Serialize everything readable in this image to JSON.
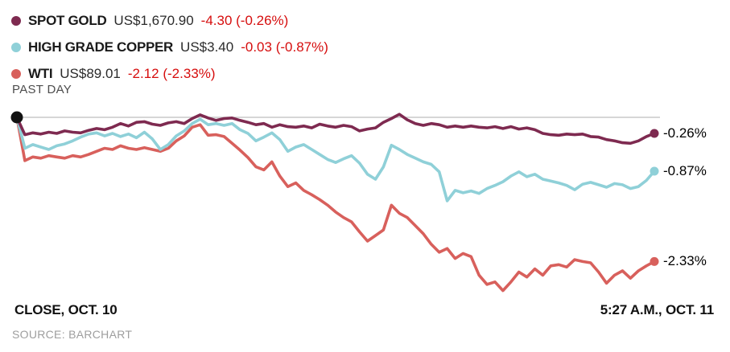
{
  "legend": {
    "items": [
      {
        "name": "SPOT GOLD",
        "price": "US$1,670.90",
        "change": "-4.30 (-0.26%)"
      },
      {
        "name": "HIGH GRADE COPPER",
        "price": "US$3.40",
        "change": "-0.03 (-0.87%)"
      },
      {
        "name": "WTI",
        "price": "US$89.01",
        "change": "-2.12 (-2.33%)"
      }
    ],
    "period_label": "PAST DAY"
  },
  "footer": {
    "left_label": "CLOSE, OCT. 10",
    "right_label": "5:27 A.M., OCT. 11",
    "source_label": "SOURCE: BARCHART"
  },
  "colors": {
    "gold_line": "#7e2a50",
    "copper_line": "#8fd0d8",
    "wti_line": "#d8605c",
    "negative_text": "#d60d0d",
    "zero_line": "#c9c9c9",
    "start_marker": "#121212"
  },
  "chart_data": {
    "type": "line",
    "unit": "percent_change_from_close",
    "title": "",
    "xlabel_start": "CLOSE, OCT. 10",
    "xlabel_end": "5:27 A.M., OCT. 11",
    "baseline_value": 0,
    "ylim": [
      -2.9,
      0.15
    ],
    "grid": false,
    "legend_position": "top-left",
    "zero_line_color": "#c9c9c9",
    "start_marker_color": "#121212",
    "series": [
      {
        "name": "SPOT GOLD",
        "color": "#7e2a50",
        "last_price": 1670.9,
        "change": -4.3,
        "pct_change": -0.26,
        "end_label": "-0.26%",
        "values": [
          0.0,
          -0.28,
          -0.25,
          -0.27,
          -0.24,
          -0.26,
          -0.22,
          -0.24,
          -0.25,
          -0.21,
          -0.18,
          -0.2,
          -0.16,
          -0.1,
          -0.14,
          -0.08,
          -0.07,
          -0.11,
          -0.13,
          -0.09,
          -0.07,
          -0.1,
          -0.02,
          0.04,
          -0.01,
          -0.05,
          -0.02,
          -0.01,
          -0.05,
          -0.08,
          -0.12,
          -0.1,
          -0.16,
          -0.12,
          -0.15,
          -0.16,
          -0.14,
          -0.17,
          -0.11,
          -0.14,
          -0.16,
          -0.13,
          -0.15,
          -0.22,
          -0.19,
          -0.17,
          -0.08,
          -0.02,
          0.05,
          -0.04,
          -0.1,
          -0.13,
          -0.1,
          -0.12,
          -0.16,
          -0.14,
          -0.16,
          -0.14,
          -0.16,
          -0.17,
          -0.15,
          -0.18,
          -0.15,
          -0.19,
          -0.17,
          -0.2,
          -0.26,
          -0.28,
          -0.29,
          -0.27,
          -0.28,
          -0.27,
          -0.31,
          -0.32,
          -0.36,
          -0.38,
          -0.41,
          -0.42,
          -0.38,
          -0.31,
          -0.26
        ]
      },
      {
        "name": "HIGH GRADE COPPER",
        "color": "#8fd0d8",
        "last_price": 3.4,
        "change": -0.03,
        "pct_change": -0.87,
        "end_label": "-0.87%",
        "values": [
          0.0,
          -0.5,
          -0.44,
          -0.48,
          -0.52,
          -0.46,
          -0.43,
          -0.38,
          -0.32,
          -0.27,
          -0.25,
          -0.3,
          -0.26,
          -0.31,
          -0.27,
          -0.33,
          -0.24,
          -0.35,
          -0.52,
          -0.44,
          -0.3,
          -0.22,
          -0.1,
          -0.03,
          -0.12,
          -0.1,
          -0.13,
          -0.1,
          -0.2,
          -0.26,
          -0.38,
          -0.32,
          -0.25,
          -0.36,
          -0.55,
          -0.48,
          -0.44,
          -0.52,
          -0.6,
          -0.68,
          -0.73,
          -0.67,
          -0.62,
          -0.74,
          -0.92,
          -1.0,
          -0.8,
          -0.45,
          -0.52,
          -0.6,
          -0.66,
          -0.72,
          -0.76,
          -0.88,
          -1.35,
          -1.18,
          -1.22,
          -1.19,
          -1.23,
          -1.15,
          -1.1,
          -1.04,
          -0.95,
          -0.88,
          -0.96,
          -0.92,
          -1.0,
          -1.03,
          -1.06,
          -1.1,
          -1.17,
          -1.08,
          -1.05,
          -1.09,
          -1.13,
          -1.07,
          -1.09,
          -1.15,
          -1.12,
          -1.02,
          -0.87
        ]
      },
      {
        "name": "WTI",
        "color": "#d8605c",
        "last_price": 89.01,
        "change": -2.12,
        "pct_change": -2.33,
        "end_label": "-2.33%",
        "values": [
          0.0,
          -0.7,
          -0.64,
          -0.66,
          -0.62,
          -0.64,
          -0.66,
          -0.62,
          -0.64,
          -0.6,
          -0.55,
          -0.5,
          -0.52,
          -0.46,
          -0.5,
          -0.52,
          -0.49,
          -0.52,
          -0.55,
          -0.5,
          -0.38,
          -0.3,
          -0.16,
          -0.12,
          -0.29,
          -0.28,
          -0.31,
          -0.42,
          -0.53,
          -0.65,
          -0.8,
          -0.85,
          -0.72,
          -0.95,
          -1.12,
          -1.06,
          -1.18,
          -1.25,
          -1.33,
          -1.42,
          -1.53,
          -1.62,
          -1.69,
          -1.85,
          -2.0,
          -1.91,
          -1.82,
          -1.42,
          -1.55,
          -1.62,
          -1.75,
          -1.88,
          -2.05,
          -2.18,
          -2.12,
          -2.28,
          -2.2,
          -2.25,
          -2.55,
          -2.7,
          -2.66,
          -2.8,
          -2.66,
          -2.5,
          -2.58,
          -2.45,
          -2.55,
          -2.4,
          -2.38,
          -2.42,
          -2.3,
          -2.33,
          -2.35,
          -2.5,
          -2.68,
          -2.55,
          -2.48,
          -2.6,
          -2.48,
          -2.4,
          -2.33
        ]
      }
    ]
  }
}
